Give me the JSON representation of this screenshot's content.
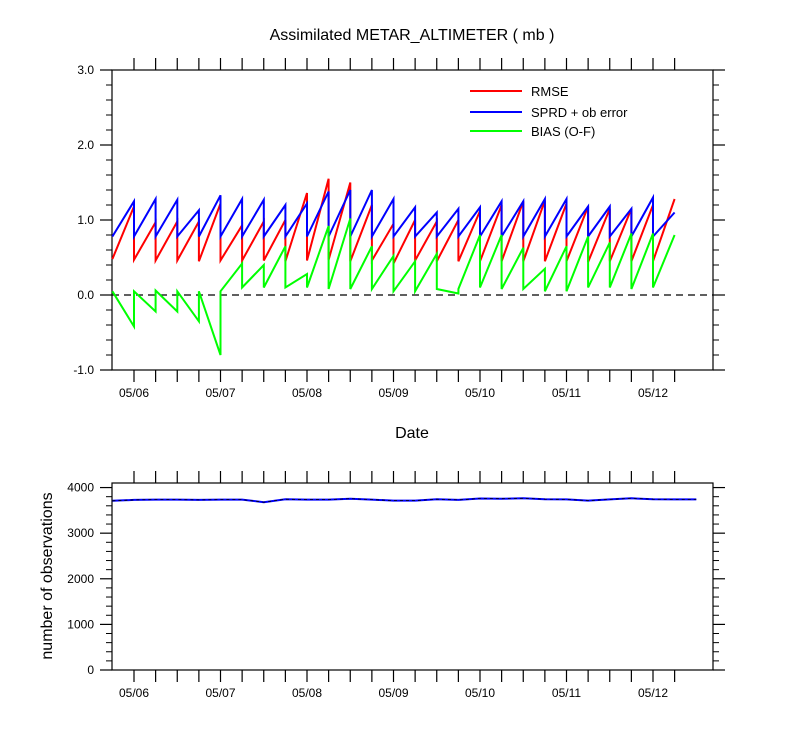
{
  "chart_data": [
    {
      "type": "line",
      "title": "Assimilated METAR_ALTIMETER ( mb )",
      "xlabel": "Date",
      "ylabel": "",
      "ylim": [
        -1.0,
        3.0
      ],
      "yticks": [
        "-1.0",
        "0.0",
        "1.0",
        "2.0",
        "3.0"
      ],
      "xticks": [
        "05/06",
        "05/07",
        "05/08",
        "05/09",
        "05/10",
        "05/11",
        "05/12"
      ],
      "xunit": "days since 05/06",
      "grid": false,
      "legend_position": "top-right",
      "reference_line": {
        "y": 0.0,
        "style": "dashed"
      },
      "series": [
        {
          "name": "RMSE",
          "color": "#ff0000",
          "points": [
            [
              -0.25,
              0.48
            ],
            [
              0.0,
              1.18
            ],
            [
              0.0,
              0.47
            ],
            [
              0.25,
              0.97
            ],
            [
              0.25,
              0.46
            ],
            [
              0.5,
              0.98
            ],
            [
              0.5,
              0.46
            ],
            [
              0.75,
              0.98
            ],
            [
              0.75,
              0.45
            ],
            [
              1.0,
              1.22
            ],
            [
              1.0,
              0.46
            ],
            [
              1.25,
              0.93
            ],
            [
              1.25,
              0.46
            ],
            [
              1.5,
              0.98
            ],
            [
              1.5,
              0.46
            ],
            [
              1.75,
              1.0
            ],
            [
              1.75,
              0.45
            ],
            [
              2.0,
              1.36
            ],
            [
              2.0,
              0.46
            ],
            [
              2.25,
              1.55
            ],
            [
              2.25,
              0.47
            ],
            [
              2.5,
              1.5
            ],
            [
              2.5,
              0.45
            ],
            [
              2.75,
              1.2
            ],
            [
              2.75,
              0.46
            ],
            [
              3.0,
              0.95
            ],
            [
              3.0,
              0.42
            ],
            [
              3.25,
              1.0
            ],
            [
              3.25,
              0.46
            ],
            [
              3.5,
              0.98
            ],
            [
              3.5,
              0.45
            ],
            [
              3.75,
              1.0
            ],
            [
              3.75,
              0.45
            ],
            [
              4.0,
              1.12
            ],
            [
              4.0,
              0.45
            ],
            [
              4.25,
              1.2
            ],
            [
              4.25,
              0.45
            ],
            [
              4.5,
              1.25
            ],
            [
              4.5,
              0.45
            ],
            [
              4.75,
              1.26
            ],
            [
              4.75,
              0.45
            ],
            [
              5.0,
              1.22
            ],
            [
              5.0,
              0.45
            ],
            [
              5.25,
              1.18
            ],
            [
              5.25,
              0.44
            ],
            [
              5.5,
              1.15
            ],
            [
              5.5,
              0.45
            ],
            [
              5.75,
              1.15
            ],
            [
              5.75,
              0.45
            ],
            [
              6.0,
              1.2
            ],
            [
              6.0,
              0.45
            ],
            [
              6.25,
              1.28
            ]
          ]
        },
        {
          "name": "SPRD + ob error",
          "color": "#0000ff",
          "points": [
            [
              -0.25,
              0.78
            ],
            [
              0.0,
              1.25
            ],
            [
              0.0,
              0.78
            ],
            [
              0.25,
              1.28
            ],
            [
              0.25,
              0.78
            ],
            [
              0.5,
              1.27
            ],
            [
              0.5,
              0.78
            ],
            [
              0.75,
              1.13
            ],
            [
              0.75,
              0.78
            ],
            [
              1.0,
              1.33
            ],
            [
              1.0,
              0.78
            ],
            [
              1.25,
              1.28
            ],
            [
              1.25,
              0.78
            ],
            [
              1.5,
              1.27
            ],
            [
              1.5,
              0.78
            ],
            [
              1.75,
              1.2
            ],
            [
              1.75,
              0.78
            ],
            [
              2.0,
              1.22
            ],
            [
              2.0,
              0.78
            ],
            [
              2.25,
              1.38
            ],
            [
              2.25,
              0.78
            ],
            [
              2.5,
              1.4
            ],
            [
              2.5,
              0.78
            ],
            [
              2.75,
              1.4
            ],
            [
              2.75,
              0.78
            ],
            [
              3.0,
              1.28
            ],
            [
              3.0,
              0.78
            ],
            [
              3.25,
              1.17
            ],
            [
              3.25,
              0.78
            ],
            [
              3.5,
              1.1
            ],
            [
              3.5,
              0.78
            ],
            [
              3.75,
              1.15
            ],
            [
              3.75,
              0.78
            ],
            [
              4.0,
              1.17
            ],
            [
              4.0,
              0.78
            ],
            [
              4.25,
              1.25
            ],
            [
              4.25,
              0.78
            ],
            [
              4.5,
              1.25
            ],
            [
              4.5,
              0.78
            ],
            [
              4.75,
              1.28
            ],
            [
              4.75,
              0.78
            ],
            [
              5.0,
              1.28
            ],
            [
              5.0,
              0.78
            ],
            [
              5.25,
              1.18
            ],
            [
              5.25,
              0.78
            ],
            [
              5.5,
              1.18
            ],
            [
              5.5,
              0.78
            ],
            [
              5.75,
              1.15
            ],
            [
              5.75,
              0.78
            ],
            [
              6.0,
              1.3
            ],
            [
              6.0,
              0.78
            ],
            [
              6.25,
              1.1
            ]
          ]
        },
        {
          "name": "BIAS (O-F)",
          "color": "#00ff00",
          "points": [
            [
              -0.25,
              0.05
            ],
            [
              0.0,
              -0.42
            ],
            [
              0.0,
              0.05
            ],
            [
              0.25,
              -0.22
            ],
            [
              0.25,
              0.06
            ],
            [
              0.5,
              -0.22
            ],
            [
              0.5,
              0.05
            ],
            [
              0.75,
              -0.35
            ],
            [
              0.75,
              0.05
            ],
            [
              1.0,
              -0.8
            ],
            [
              1.0,
              0.05
            ],
            [
              1.25,
              0.42
            ],
            [
              1.25,
              0.1
            ],
            [
              1.5,
              0.4
            ],
            [
              1.5,
              0.1
            ],
            [
              1.75,
              0.65
            ],
            [
              1.75,
              0.1
            ],
            [
              2.0,
              0.28
            ],
            [
              2.0,
              0.1
            ],
            [
              2.25,
              0.92
            ],
            [
              2.25,
              0.08
            ],
            [
              2.5,
              1.02
            ],
            [
              2.5,
              0.08
            ],
            [
              2.75,
              0.65
            ],
            [
              2.75,
              0.08
            ],
            [
              3.0,
              0.52
            ],
            [
              3.0,
              0.05
            ],
            [
              3.25,
              0.45
            ],
            [
              3.25,
              0.05
            ],
            [
              3.5,
              0.55
            ],
            [
              3.5,
              0.08
            ],
            [
              3.75,
              0.02
            ],
            [
              3.75,
              0.08
            ],
            [
              4.0,
              0.8
            ],
            [
              4.0,
              0.1
            ],
            [
              4.25,
              0.8
            ],
            [
              4.25,
              0.08
            ],
            [
              4.5,
              0.63
            ],
            [
              4.5,
              0.08
            ],
            [
              4.75,
              0.35
            ],
            [
              4.75,
              0.05
            ],
            [
              5.0,
              0.65
            ],
            [
              5.0,
              0.05
            ],
            [
              5.25,
              0.78
            ],
            [
              5.25,
              0.1
            ],
            [
              5.5,
              0.7
            ],
            [
              5.5,
              0.1
            ],
            [
              5.75,
              0.82
            ],
            [
              5.75,
              0.08
            ],
            [
              6.0,
              0.82
            ],
            [
              6.0,
              0.1
            ],
            [
              6.25,
              0.8
            ]
          ]
        }
      ]
    },
    {
      "type": "line",
      "title": "",
      "xlabel": "",
      "ylabel": "number of observations",
      "ylim": [
        0,
        4100
      ],
      "yticks": [
        "0",
        "1000",
        "2000",
        "3000",
        "4000"
      ],
      "xticks": [
        "05/06",
        "05/07",
        "05/08",
        "05/09",
        "05/10",
        "05/11",
        "05/12"
      ],
      "xunit": "days since 05/06",
      "grid": false,
      "series": [
        {
          "name": "",
          "color": "#0000ff",
          "points": [
            [
              -0.25,
              3710
            ],
            [
              0.0,
              3730
            ],
            [
              0.25,
              3735
            ],
            [
              0.5,
              3735
            ],
            [
              0.75,
              3730
            ],
            [
              1.0,
              3735
            ],
            [
              1.25,
              3735
            ],
            [
              1.5,
              3680
            ],
            [
              1.75,
              3745
            ],
            [
              2.0,
              3735
            ],
            [
              2.25,
              3735
            ],
            [
              2.5,
              3755
            ],
            [
              2.75,
              3735
            ],
            [
              3.0,
              3715
            ],
            [
              3.25,
              3715
            ],
            [
              3.5,
              3745
            ],
            [
              3.75,
              3730
            ],
            [
              4.0,
              3760
            ],
            [
              4.25,
              3755
            ],
            [
              4.5,
              3765
            ],
            [
              4.75,
              3745
            ],
            [
              5.0,
              3740
            ],
            [
              5.25,
              3715
            ],
            [
              5.5,
              3740
            ],
            [
              5.75,
              3765
            ],
            [
              6.0,
              3745
            ],
            [
              6.25,
              3740
            ],
            [
              6.5,
              3740
            ]
          ]
        }
      ]
    }
  ]
}
